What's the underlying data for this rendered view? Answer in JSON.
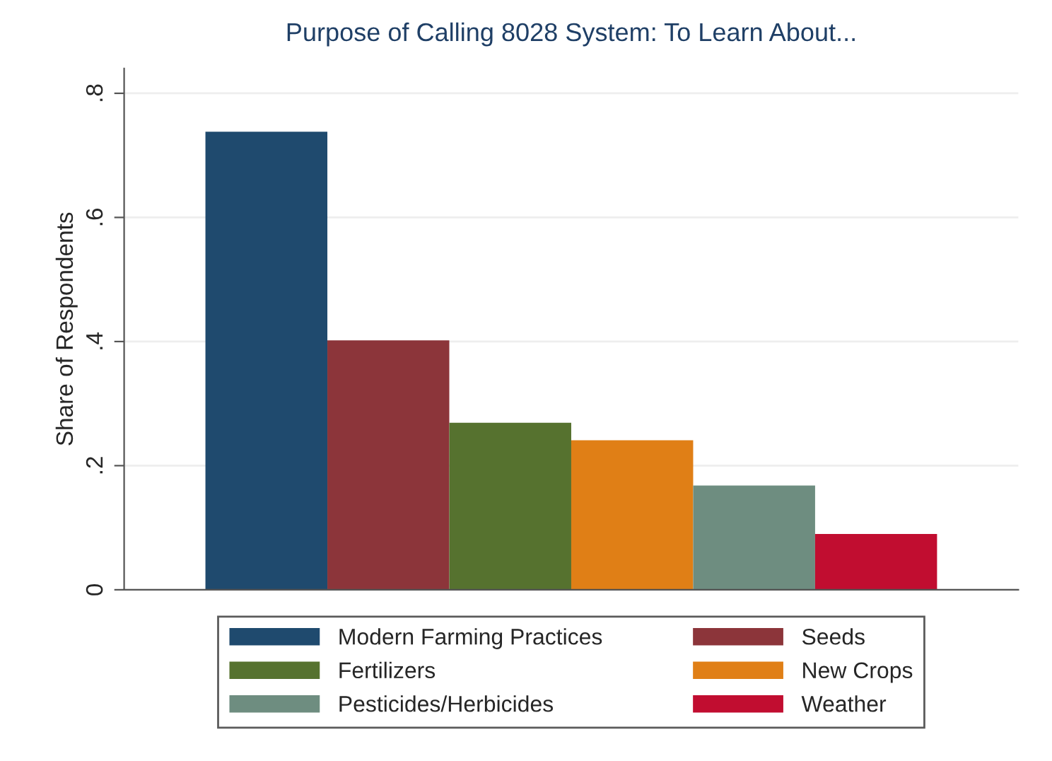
{
  "chart_data": {
    "type": "bar",
    "title": "Purpose of Calling 8028 System: To Learn About...",
    "ylabel": "Share of Respondents",
    "categories": [
      null
    ],
    "series": [
      {
        "name": "Modern Farming Practices",
        "color": "#1f4a6e",
        "values": [
          0.738
        ]
      },
      {
        "name": "Seeds",
        "color": "#8c353a",
        "values": [
          0.402
        ]
      },
      {
        "name": "Fertilizers",
        "color": "#56722f",
        "values": [
          0.269
        ]
      },
      {
        "name": "New Crops",
        "color": "#e07f16",
        "values": [
          0.241
        ]
      },
      {
        "name": "Pesticides/Herbicides",
        "color": "#6e8d80",
        "values": [
          0.168
        ]
      },
      {
        "name": "Weather",
        "color": "#c10d30",
        "values": [
          0.09
        ]
      }
    ],
    "ylim": [
      0,
      0.84
    ],
    "yticks": [
      {
        "value": 0,
        "label": "0"
      },
      {
        "value": 0.2,
        "label": ".2"
      },
      {
        "value": 0.4,
        "label": ".4"
      },
      {
        "value": 0.6,
        "label": ".6"
      },
      {
        "value": 0.8,
        "label": ".8"
      }
    ],
    "grid": "y",
    "legend": "bottom"
  }
}
